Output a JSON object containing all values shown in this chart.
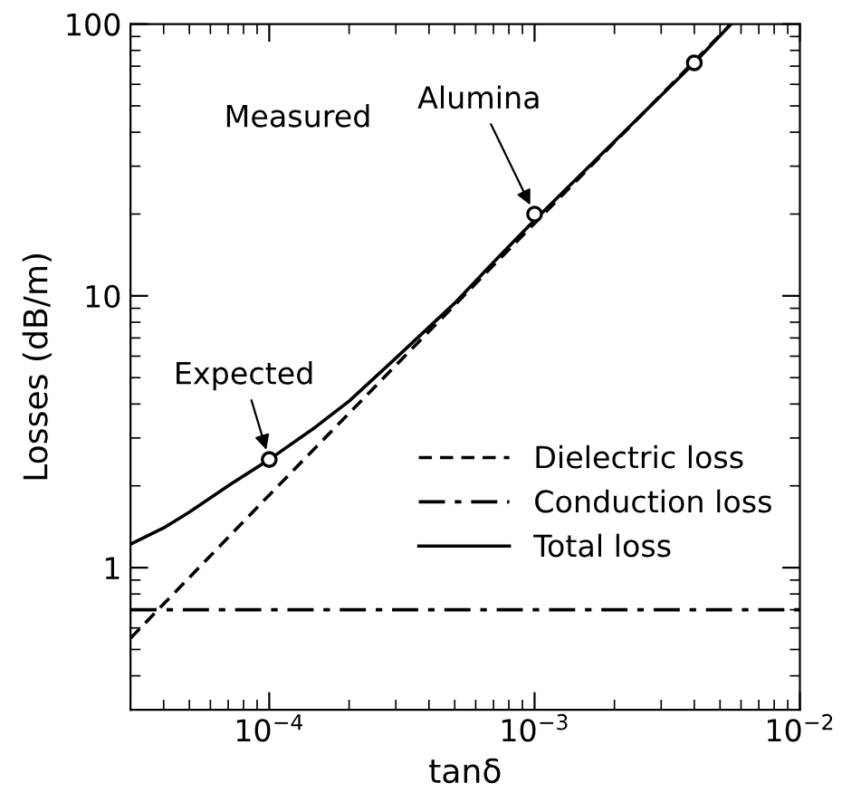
{
  "chart_data": {
    "type": "line",
    "xlabel": "tanδ",
    "ylabel": "Losses (dB/m)",
    "log": "xy",
    "xlim": [
      3e-05,
      0.01
    ],
    "xticks": [
      {
        "value": 0.0001,
        "label": "10$^{−4}$"
      },
      {
        "value": 0.001,
        "label": "10$^{−3}$"
      },
      {
        "value": 0.01,
        "label": "10$^{−2}$"
      }
    ],
    "ylim": [
      0.3,
      100
    ],
    "yticks": [
      1,
      10,
      100
    ],
    "grid": false,
    "legend": "right",
    "series": [
      {
        "name": "Dielectric loss",
        "color": "#000000",
        "line_style": "dashed",
        "x": [
          3e-05,
          0.0001,
          0.001,
          0.0055
        ],
        "values": [
          0.55,
          1.85,
          18.5,
          100
        ]
      },
      {
        "name": "Conduction loss",
        "color": "#000000",
        "line_style": "dashdot",
        "x": [
          3e-05,
          0.01
        ],
        "values": [
          0.7,
          0.7
        ]
      },
      {
        "name": "Total loss",
        "color": "#000000",
        "line_style": "solid",
        "x": [
          3e-05,
          4e-05,
          5e-05,
          7e-05,
          0.0001,
          0.00015,
          0.0002,
          0.0003,
          0.0005,
          0.0007,
          0.001,
          0.002,
          0.004,
          0.0055
        ],
        "values": [
          1.22,
          1.4,
          1.6,
          2.0,
          2.5,
          3.3,
          4.1,
          5.9,
          9.4,
          13.3,
          19,
          37,
          72,
          100
        ]
      },
      {
        "type": "scatter",
        "marker": "circle",
        "color": "#000000",
        "x": [
          0.0001,
          0.001,
          0.004
        ],
        "values": [
          2.5,
          20,
          72
        ]
      }
    ],
    "annotations": [
      {
        "text": "Expected",
        "x": 0.0001,
        "y": 2.5
      },
      "Measured",
      {
        "text": "Alumina",
        "x": 0.001,
        "y": 20
      }
    ]
  }
}
